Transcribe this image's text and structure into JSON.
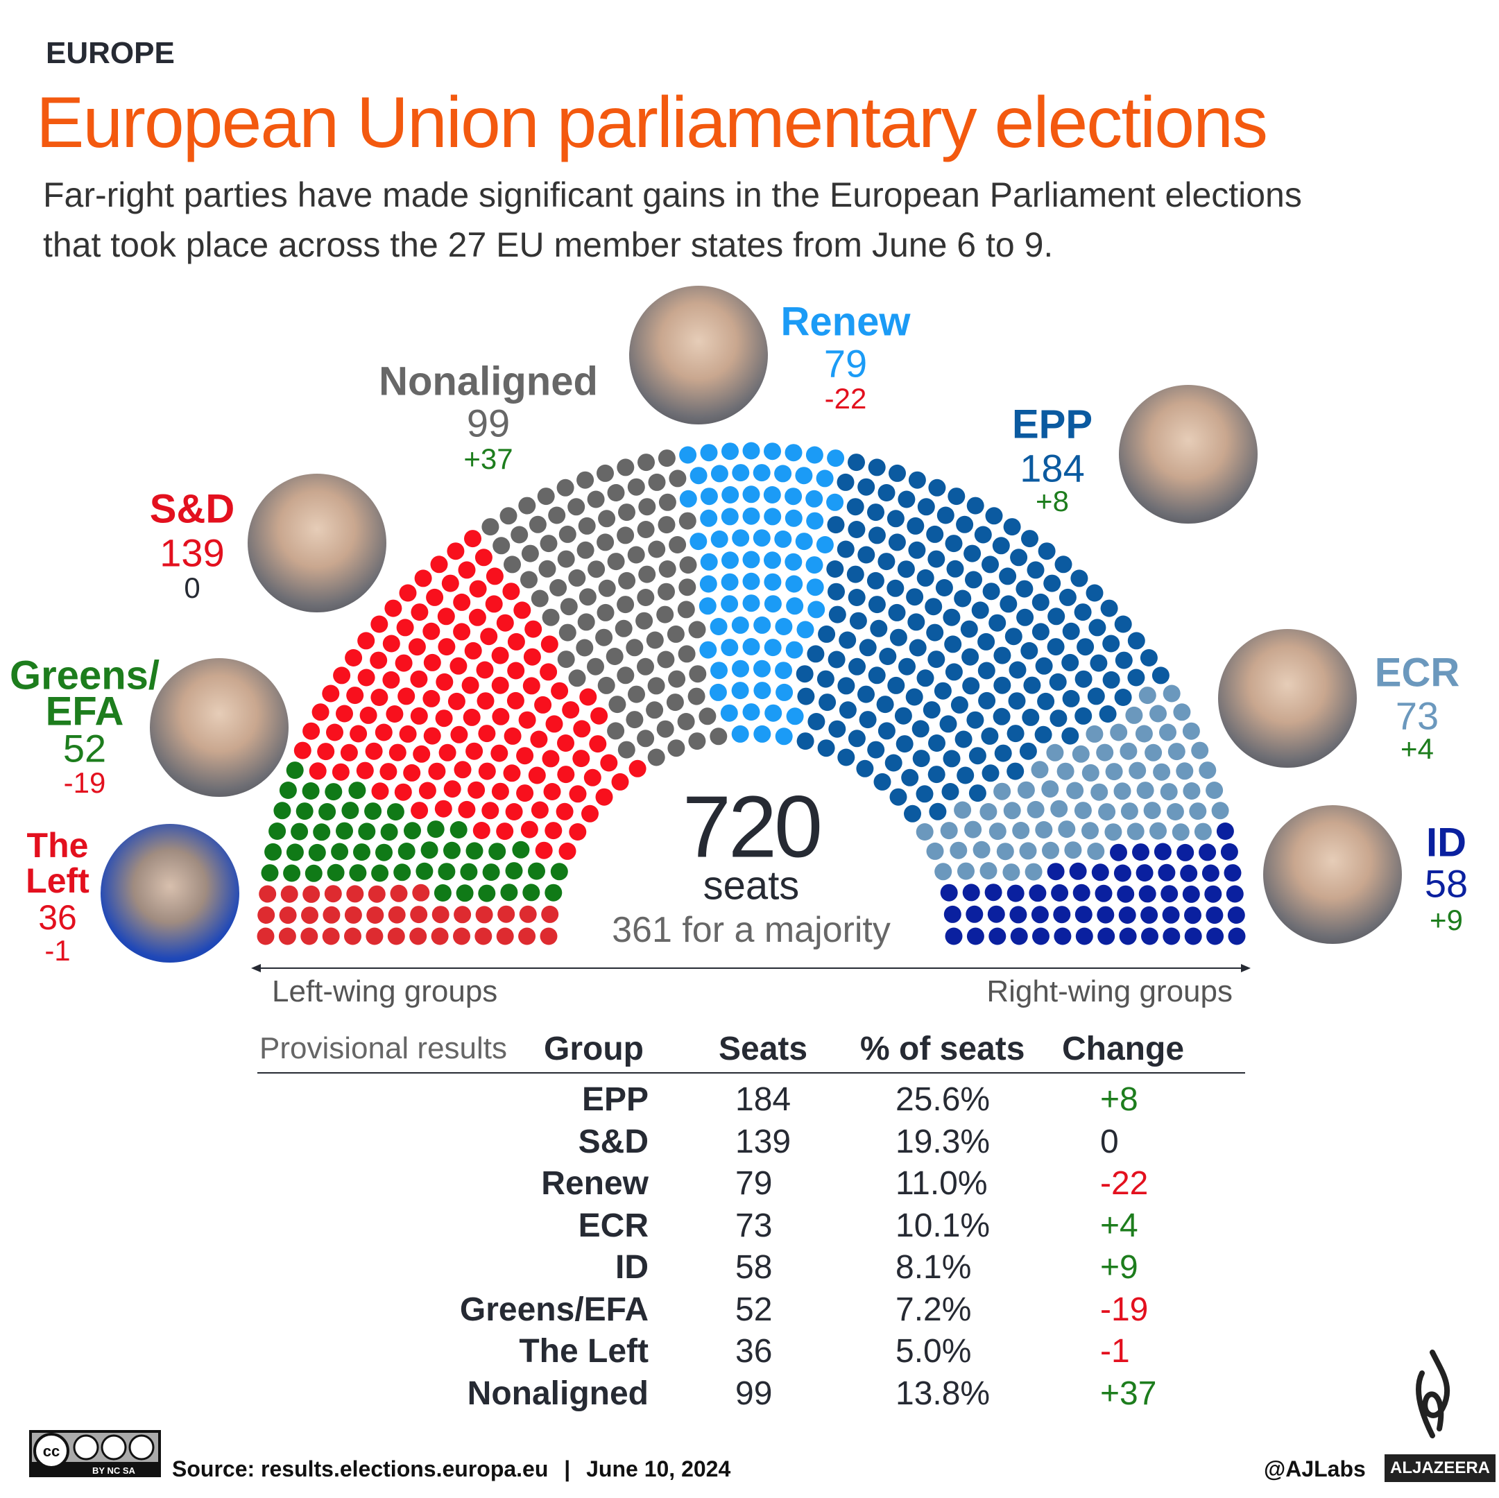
{
  "header": {
    "eyebrow": "EUROPE",
    "title": "European Union parliamentary elections",
    "subtitle_line1": "Far-right parties have made significant gains in the European Parliament elections",
    "subtitle_line2": "that took place across the 27 EU member states from June 6 to 9."
  },
  "colors": {
    "title": "#f3590f",
    "positive": "#1d7d1d",
    "negative": "#e3101e"
  },
  "chart_data": {
    "type": "hemicycle",
    "total": {
      "value": "720",
      "unit": "seats",
      "majority": "361 for a majority"
    },
    "axis": {
      "left": "Left-wing groups",
      "right": "Right-wing groups"
    },
    "order": [
      "The Left",
      "Greens/EFA",
      "S&D",
      "Nonaligned",
      "Renew",
      "EPP",
      "ECR",
      "ID"
    ],
    "parties": [
      {
        "key": "left",
        "name": "The Left",
        "name_l1": "The",
        "name_l2": "Left",
        "seats": 36,
        "change": "-1",
        "color": "#de2b30",
        "label_color": "#e3101e"
      },
      {
        "key": "greens",
        "name": "Greens/EFA",
        "name_l1": "Greens/",
        "name_l2": "EFA",
        "seats": 52,
        "change": "-19",
        "color": "#107a17",
        "label_color": "#1d7d1d"
      },
      {
        "key": "sd",
        "name": "S&D",
        "seats": 139,
        "change": "0",
        "color": "#f8101d",
        "label_color": "#e3101e"
      },
      {
        "key": "ni",
        "name": "Nonaligned",
        "seats": 99,
        "change": "+37",
        "color": "#676767",
        "label_color": "#676767"
      },
      {
        "key": "renew",
        "name": "Renew",
        "seats": 79,
        "change": "-22",
        "color": "#1b9bf6",
        "label_color": "#1b9bf6"
      },
      {
        "key": "epp",
        "name": "EPP",
        "seats": 184,
        "change": "+8",
        "color": "#0b5aa0",
        "label_color": "#0b5aa0"
      },
      {
        "key": "ecr",
        "name": "ECR",
        "seats": 73,
        "change": "+4",
        "color": "#6b98bd",
        "label_color": "#6b98bd"
      },
      {
        "key": "id",
        "name": "ID",
        "seats": 58,
        "change": "+9",
        "color": "#0a209f",
        "label_color": "#0a209f"
      }
    ]
  },
  "table": {
    "caption": "Provisional results",
    "headers": [
      "Group",
      "Seats",
      "% of seats",
      "Change"
    ],
    "rows": [
      {
        "group": "EPP",
        "seats": "184",
        "pct": "25.6%",
        "change": "+8",
        "sign": "pos"
      },
      {
        "group": "S&D",
        "seats": "139",
        "pct": "19.3%",
        "change": "0",
        "sign": "zero"
      },
      {
        "group": "Renew",
        "seats": "79",
        "pct": "11.0%",
        "change": "-22",
        "sign": "neg"
      },
      {
        "group": "ECR",
        "seats": "73",
        "pct": "10.1%",
        "change": "+4",
        "sign": "pos"
      },
      {
        "group": "ID",
        "seats": "58",
        "pct": "8.1%",
        "change": "+9",
        "sign": "pos"
      },
      {
        "group": "Greens/EFA",
        "seats": "52",
        "pct": "7.2%",
        "change": "-19",
        "sign": "neg"
      },
      {
        "group": "The Left",
        "seats": "36",
        "pct": "5.0%",
        "change": "-1",
        "sign": "neg"
      },
      {
        "group": "Nonaligned",
        "seats": "99",
        "pct": "13.8%",
        "change": "+37",
        "sign": "pos"
      }
    ]
  },
  "footer": {
    "license_badge": "BY NC SA",
    "source": "Source: results.elections.europa.eu",
    "separator": "|",
    "date": "June 10, 2024",
    "handle": "@AJLabs",
    "logo_text": "ALJAZEERA"
  }
}
